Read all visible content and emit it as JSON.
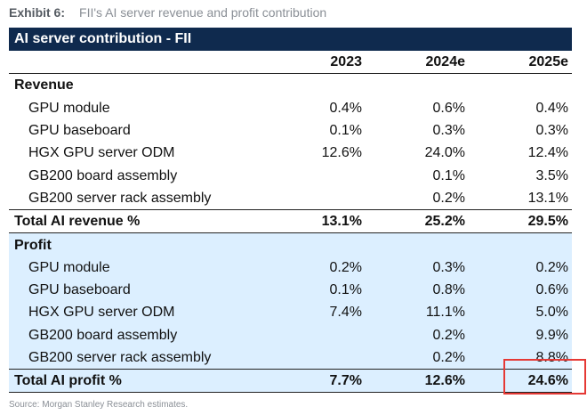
{
  "exhibit": {
    "number": "Exhibit 6:",
    "title": "FII's AI server revenue and profit contribution"
  },
  "table_title": "AI server contribution - FII",
  "columns": [
    "2023",
    "2024e",
    "2025e"
  ],
  "revenue": {
    "heading": "Revenue",
    "rows": [
      {
        "label": "GPU module",
        "values": [
          "0.4%",
          "0.6%",
          "0.4%"
        ]
      },
      {
        "label": "GPU baseboard",
        "values": [
          "0.1%",
          "0.3%",
          "0.3%"
        ]
      },
      {
        "label": "HGX GPU server ODM",
        "values": [
          "12.6%",
          "24.0%",
          "12.4%"
        ]
      },
      {
        "label": "GB200 board assembly",
        "values": [
          "",
          "0.1%",
          "3.5%"
        ]
      },
      {
        "label": "GB200 server rack assembly",
        "values": [
          "",
          "0.2%",
          "13.1%"
        ]
      }
    ],
    "total": {
      "label": "Total AI revenue %",
      "values": [
        "13.1%",
        "25.2%",
        "29.5%"
      ]
    }
  },
  "profit": {
    "heading": "Profit",
    "rows": [
      {
        "label": "GPU module",
        "values": [
          "0.2%",
          "0.3%",
          "0.2%"
        ]
      },
      {
        "label": "GPU baseboard",
        "values": [
          "0.1%",
          "0.8%",
          "0.6%"
        ]
      },
      {
        "label": "HGX GPU server ODM",
        "values": [
          "7.4%",
          "11.1%",
          "5.0%"
        ]
      },
      {
        "label": "GB200 board assembly",
        "values": [
          "",
          "0.2%",
          "9.9%"
        ]
      },
      {
        "label": "GB200 server rack assembly",
        "values": [
          "",
          "0.2%",
          "8.8%"
        ]
      }
    ],
    "total": {
      "label": "Total AI profit %",
      "values": [
        "7.7%",
        "12.6%",
        "24.6%"
      ]
    }
  },
  "source": "Source: Morgan Stanley Research estimates.",
  "colors": {
    "title_bar": "#0f2a4e",
    "profit_bg": "#dcefff",
    "highlight": "#e53935"
  }
}
